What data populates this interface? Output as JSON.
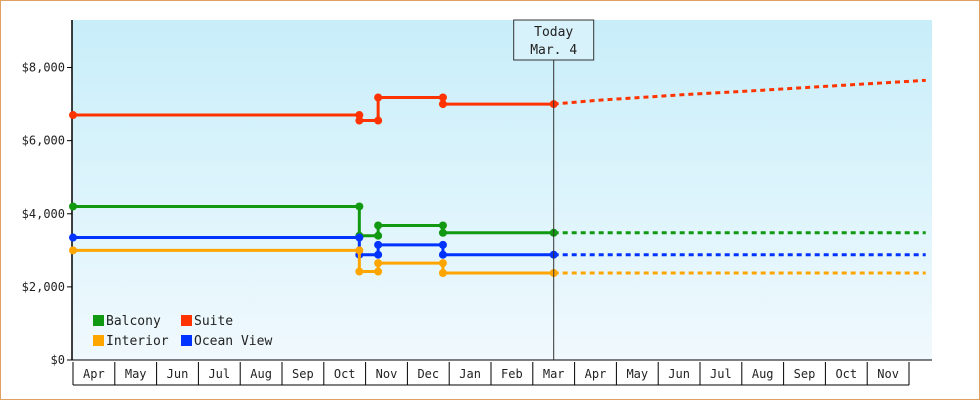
{
  "chart_data": {
    "type": "line",
    "step": true,
    "title": "",
    "xlabel": "",
    "ylabel": "",
    "ylim": [
      0,
      9300
    ],
    "yticks": [
      0,
      2000,
      4000,
      6000,
      8000
    ],
    "ytick_labels": [
      "$0",
      "$2,000",
      "$4,000",
      "$6,000",
      "$8,000"
    ],
    "x_months": [
      "Apr",
      "May",
      "Jun",
      "Jul",
      "Aug",
      "Sep",
      "Oct",
      "Nov",
      "Dec",
      "Jan",
      "Feb",
      "Mar",
      "Apr",
      "May",
      "Jun",
      "Jul",
      "Aug",
      "Sep",
      "Oct",
      "Nov"
    ],
    "today": {
      "line1": "Today",
      "line2": "Mar. 4",
      "x": 11.5
    },
    "legend": {
      "placement": "bottom-left"
    },
    "series": [
      {
        "name": "Suite",
        "color": "#ff3300",
        "points": [
          [
            0,
            6700
          ],
          [
            6.85,
            6700
          ],
          [
            6.85,
            6550
          ],
          [
            7.3,
            6550
          ],
          [
            7.3,
            7180
          ],
          [
            8.85,
            7180
          ],
          [
            8.85,
            7000
          ],
          [
            11.5,
            7000
          ]
        ],
        "forecast": [
          [
            11.5,
            7000
          ],
          [
            12.5,
            7100
          ],
          [
            14.5,
            7250
          ],
          [
            16.5,
            7380
          ],
          [
            18.5,
            7520
          ],
          [
            20.4,
            7650
          ]
        ]
      },
      {
        "name": "Balcony",
        "color": "#119911",
        "points": [
          [
            0,
            4200
          ],
          [
            6.85,
            4200
          ],
          [
            6.85,
            3400
          ],
          [
            7.3,
            3400
          ],
          [
            7.3,
            3680
          ],
          [
            8.85,
            3680
          ],
          [
            8.85,
            3480
          ],
          [
            11.5,
            3480
          ]
        ],
        "forecast": [
          [
            11.5,
            3480
          ],
          [
            20.4,
            3480
          ]
        ]
      },
      {
        "name": "Ocean View",
        "color": "#0033ff",
        "points": [
          [
            0,
            3350
          ],
          [
            6.85,
            3350
          ],
          [
            6.85,
            2880
          ],
          [
            7.3,
            2880
          ],
          [
            7.3,
            3150
          ],
          [
            8.85,
            3150
          ],
          [
            8.85,
            2880
          ],
          [
            11.5,
            2880
          ]
        ],
        "forecast": [
          [
            11.5,
            2880
          ],
          [
            20.4,
            2880
          ]
        ]
      },
      {
        "name": "Interior",
        "color": "#ffa500",
        "points": [
          [
            0,
            3000
          ],
          [
            6.85,
            3000
          ],
          [
            6.85,
            2420
          ],
          [
            7.3,
            2420
          ],
          [
            7.3,
            2650
          ],
          [
            8.85,
            2650
          ],
          [
            8.85,
            2380
          ],
          [
            11.5,
            2380
          ]
        ],
        "forecast": [
          [
            11.5,
            2380
          ],
          [
            20.4,
            2380
          ]
        ]
      }
    ],
    "legend_order": [
      [
        "Balcony",
        "Suite"
      ],
      [
        "Interior",
        "Ocean View"
      ]
    ]
  }
}
